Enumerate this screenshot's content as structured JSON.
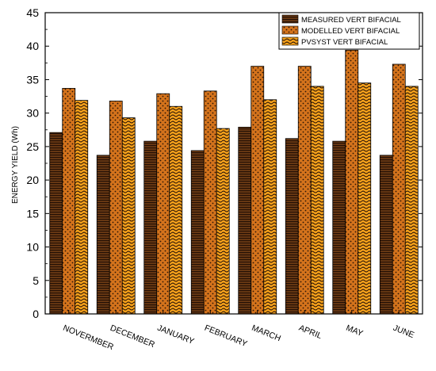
{
  "chart_data": {
    "type": "bar",
    "ylabel": "ENERGY YIELD (Wh)",
    "xlabel": "",
    "ylim": [
      0,
      45
    ],
    "yticks": [
      0,
      5,
      10,
      15,
      20,
      25,
      30,
      35,
      40,
      45
    ],
    "categories": [
      "NOVERMBER",
      "DECEMBER",
      "JANUARY",
      "FEBRUARY",
      "MARCH",
      "APRIL",
      "MAY",
      "JUNE"
    ],
    "series": [
      {
        "name": "MEASURED VERT BIFACIAL",
        "values": [
          27.1,
          23.7,
          25.8,
          24.4,
          27.9,
          26.2,
          25.8,
          23.7
        ],
        "color": "#5a3010",
        "pattern": "horizontal-lines"
      },
      {
        "name": "MODELLED VERT BIFACIAL",
        "values": [
          33.7,
          31.8,
          32.9,
          33.3,
          37.0,
          37.0,
          39.4,
          37.3
        ],
        "color": "#d4731c",
        "pattern": "dots"
      },
      {
        "name": "PVSYST VERT BIFACIAL",
        "values": [
          31.9,
          29.3,
          31.0,
          27.7,
          32.0,
          34.0,
          34.5,
          34.0
        ],
        "color": "#f7a21b",
        "pattern": "wave"
      }
    ],
    "legend_position": "top-right",
    "grid": false
  }
}
